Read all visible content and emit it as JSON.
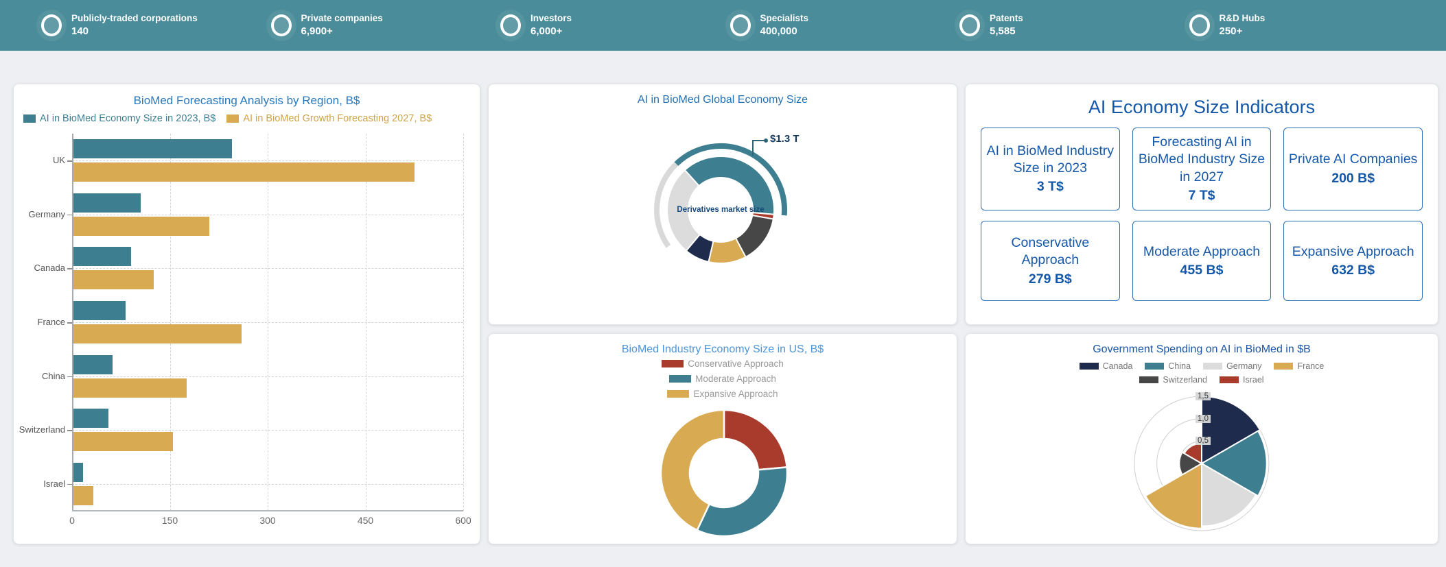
{
  "topbar": {
    "bg_color": "#4a8c99",
    "stats": [
      {
        "label": "Publicly-traded corporations",
        "value": "140"
      },
      {
        "label": "Private companies",
        "value": "6,900+"
      },
      {
        "label": "Investors",
        "value": "6,000+"
      },
      {
        "label": "Specialists",
        "value": "400,000"
      },
      {
        "label": "Patents",
        "value": "5,585"
      },
      {
        "label": "R&D Hubs",
        "value": "250+"
      }
    ]
  },
  "indicators": {
    "title": "AI Economy Size Indicators",
    "cards": [
      {
        "label": "AI in BioMed Industry Size in 2023",
        "value": "3 T$"
      },
      {
        "label": "Forecasting AI in BioMed Industry Size in 2027",
        "value": "7 T$"
      },
      {
        "label": "Private AI Companies",
        "value": "200 B$"
      },
      {
        "label": "Conservative Approach",
        "value": "279 B$"
      },
      {
        "label": "Moderate Approach",
        "value": "455 B$"
      },
      {
        "label": "Expansive Approach",
        "value": "632 B$"
      }
    ]
  },
  "chart_data": [
    {
      "id": "biomed-forecasting-by-region",
      "type": "bar",
      "orientation": "horizontal",
      "title": "BioMed Forecasting Analysis by Region, B$",
      "categories": [
        "UK",
        "Germany",
        "Canada",
        "France",
        "China",
        "Switzerland",
        "Israel"
      ],
      "series": [
        {
          "name": "AI in BioMed Economy Size in 2023, B$",
          "color": "#3d7f91",
          "values": [
            245,
            105,
            90,
            82,
            62,
            56,
            17
          ]
        },
        {
          "name": "AI in BioMed Growth Forecasting 2027, B$",
          "color": "#d8ab52",
          "values": [
            525,
            210,
            125,
            260,
            176,
            155,
            33
          ]
        }
      ],
      "xlim": [
        0,
        600
      ],
      "xticks": [
        0,
        150,
        300,
        450,
        600
      ],
      "grid": "dashed"
    },
    {
      "id": "global-economy-donut",
      "type": "pie",
      "title": "AI in BioMed Global Economy Size",
      "callout": {
        "text": "$1.3 T"
      },
      "center_label": "Derivatives market size",
      "start_angle_deg": -42,
      "segments": [
        {
          "name": "teal-segment",
          "color": "#3d7f91",
          "sweep_deg": 137
        },
        {
          "name": "red-segment",
          "color": "#a93b2c",
          "sweep_deg": 5
        },
        {
          "name": "charcoal-segment",
          "color": "#474747",
          "sweep_deg": 52
        },
        {
          "name": "gold-segment",
          "color": "#d8ab52",
          "sweep_deg": 41
        },
        {
          "name": "navy-segment",
          "color": "#1e2b4d",
          "sweep_deg": 27
        },
        {
          "name": "lightgray-segment",
          "color": "#dcdcdc",
          "sweep_deg": 98
        }
      ],
      "outer_ring": [
        {
          "color": "#3d7f91",
          "start_deg": -44,
          "sweep_deg": 139
        },
        {
          "color": "#d9d9d9",
          "start_deg": -125,
          "sweep_deg": 81
        }
      ]
    },
    {
      "id": "us-economy-donut",
      "type": "pie",
      "title": "BioMed Industry Economy Size in US, B$",
      "legend_position": "top-vertical",
      "segments": [
        {
          "name": "Conservative Approach",
          "color": "#a93b2c",
          "share_pct": 23.5
        },
        {
          "name": "Moderate Approach",
          "color": "#3d7f91",
          "share_pct": 33.5
        },
        {
          "name": "Expansive Approach",
          "color": "#d8ab52",
          "share_pct": 43.0
        }
      ]
    },
    {
      "id": "gov-spending-rose",
      "type": "pie",
      "subtype": "rose-polar",
      "title": "Government Spending on AI in BioMed in $B",
      "rmax": 1.5,
      "rticks": [
        "0,5",
        "1,0",
        "1,5"
      ],
      "slices": [
        {
          "name": "Canada",
          "color": "#1e2b4d",
          "value": 1.5
        },
        {
          "name": "China",
          "color": "#3d7f91",
          "value": 1.45
        },
        {
          "name": "Germany",
          "color": "#dcdcdc",
          "value": 1.4
        },
        {
          "name": "France",
          "color": "#d8ab52",
          "value": 1.45
        },
        {
          "name": "Switzerland",
          "color": "#474747",
          "value": 0.5
        },
        {
          "name": "Israel",
          "color": "#a93b2c",
          "value": 0.45
        }
      ]
    }
  ]
}
